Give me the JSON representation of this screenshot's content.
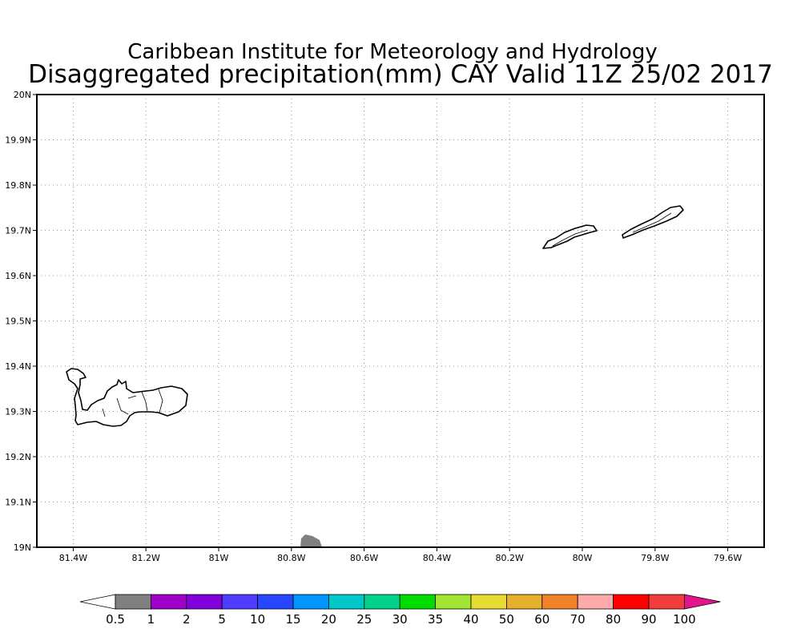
{
  "title_line1": "Caribbean Institute for Meteorology and Hydrology",
  "title_line2": "Disaggregated precipitation(mm) CAY Valid 11Z 25/02 2017",
  "map": {
    "lon_range": [
      -81.5,
      -79.5
    ],
    "lat_range": [
      19.0,
      20.0
    ],
    "x_ticks": [
      {
        "lon": -81.4,
        "label": "81.4W"
      },
      {
        "lon": -81.2,
        "label": "81.2W"
      },
      {
        "lon": -81.0,
        "label": "81W"
      },
      {
        "lon": -80.8,
        "label": "80.8W"
      },
      {
        "lon": -80.6,
        "label": "80.6W"
      },
      {
        "lon": -80.4,
        "label": "80.4W"
      },
      {
        "lon": -80.2,
        "label": "80.2W"
      },
      {
        "lon": -80.0,
        "label": "80W"
      },
      {
        "lon": -79.8,
        "label": "79.8W"
      },
      {
        "lon": -79.6,
        "label": "79.6W"
      }
    ],
    "y_ticks": [
      {
        "lat": 20.0,
        "label": "20N"
      },
      {
        "lat": 19.9,
        "label": "19.9N"
      },
      {
        "lat": 19.8,
        "label": "19.8N"
      },
      {
        "lat": 19.7,
        "label": "19.7N"
      },
      {
        "lat": 19.6,
        "label": "19.6N"
      },
      {
        "lat": 19.5,
        "label": "19.5N"
      },
      {
        "lat": 19.4,
        "label": "19.4N"
      },
      {
        "lat": 19.3,
        "label": "19.3N"
      },
      {
        "lat": 19.2,
        "label": "19.2N"
      },
      {
        "lat": 19.1,
        "label": "19.1N"
      },
      {
        "lat": 19.0,
        "label": "19N"
      }
    ],
    "gridlines": "dotted",
    "precip_patch_color": "#808080"
  },
  "colorbar": {
    "labels": [
      "0.5",
      "1",
      "2",
      "5",
      "10",
      "15",
      "20",
      "25",
      "30",
      "35",
      "40",
      "50",
      "60",
      "70",
      "80",
      "90",
      "100"
    ],
    "colors": [
      "#ffffff",
      "#808080",
      "#a000c8",
      "#8200dc",
      "#503cff",
      "#2846ff",
      "#0096ff",
      "#00c8c8",
      "#00d28c",
      "#00dc00",
      "#a0e632",
      "#e6dc32",
      "#e6af2d",
      "#f08228",
      "#ffaaaa",
      "#ff0000",
      "#f03c3c",
      "#e6148c"
    ]
  }
}
